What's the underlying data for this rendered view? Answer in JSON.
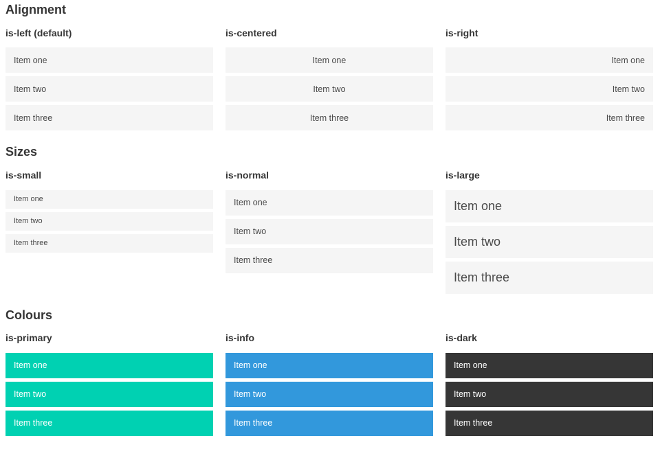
{
  "colors": {
    "primary": "#00d1b2",
    "info": "#3298dc",
    "dark": "#363636",
    "item_bg": "#f5f5f5",
    "item_text": "#4a4a4a",
    "heading_text": "#363636",
    "colored_item_text": "#ffffff"
  },
  "sections": [
    {
      "title": "Alignment",
      "variants": [
        {
          "label": "is-left (default)",
          "items": [
            "Item one",
            "Item two",
            "Item three"
          ]
        },
        {
          "label": "is-centered",
          "items": [
            "Item one",
            "Item two",
            "Item three"
          ]
        },
        {
          "label": "is-right",
          "items": [
            "Item one",
            "Item two",
            "Item three"
          ]
        }
      ]
    },
    {
      "title": "Sizes",
      "variants": [
        {
          "label": "is-small",
          "items": [
            "Item one",
            "Item two",
            "Item three"
          ]
        },
        {
          "label": "is-normal",
          "items": [
            "Item one",
            "Item two",
            "Item three"
          ]
        },
        {
          "label": "is-large",
          "items": [
            "Item one",
            "Item two",
            "Item three"
          ]
        }
      ]
    },
    {
      "title": "Colours",
      "variants": [
        {
          "label": "is-primary",
          "items": [
            "Item one",
            "Item two",
            "Item three"
          ]
        },
        {
          "label": "is-info",
          "items": [
            "Item one",
            "Item two",
            "Item three"
          ]
        },
        {
          "label": "is-dark",
          "items": [
            "Item one",
            "Item two",
            "Item three"
          ]
        }
      ]
    }
  ]
}
